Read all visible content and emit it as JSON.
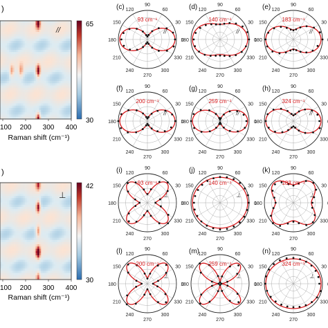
{
  "chart_data": {
    "type": "figure",
    "heatmaps": [
      {
        "id": "top",
        "panel_label": ")",
        "polarization_symbol": "//",
        "xlabel": "Raman shift (cm⁻¹)",
        "x_ticks": [
          "100",
          "200",
          "300",
          "400"
        ],
        "colorbar_max": "65",
        "colorbar_min": "30",
        "colormap": [
          "#2b6db0",
          "#7fb4d7",
          "#dcebf2",
          "#fbe3d3",
          "#f0a07f",
          "#b2182b",
          "#67001f"
        ],
        "hot_spots": [
          {
            "shift": 255,
            "angle_frac": 0.02,
            "value": 1.0
          },
          {
            "shift": 255,
            "angle_frac": 0.51,
            "value": 1.0
          },
          {
            "shift": 255,
            "angle_frac": 1.0,
            "value": 1.0
          },
          {
            "shift": 140,
            "angle_frac": 0.51,
            "value": 0.5
          },
          {
            "shift": 180,
            "angle_frac": 0.51,
            "value": 0.45
          }
        ]
      },
      {
        "id": "bottom",
        "panel_label": ")",
        "polarization_symbol": "⊥",
        "xlabel": "Raman shift (cm⁻¹)",
        "x_ticks": [
          "100",
          "200",
          "300",
          "400"
        ],
        "colorbar_max": "42",
        "colorbar_min": "30",
        "colormap": [
          "#2b6db0",
          "#7fb4d7",
          "#dcebf2",
          "#fbe3d3",
          "#f0a07f",
          "#b2182b",
          "#67001f"
        ],
        "hot_spots": [
          {
            "shift": 255,
            "angle_frac": 0.25,
            "value": 1.0
          },
          {
            "shift": 255,
            "angle_frac": 0.72,
            "value": 1.0
          },
          {
            "shift": 255,
            "angle_frac": 0.02,
            "value": 0.6
          },
          {
            "shift": 255,
            "angle_frac": 0.5,
            "value": 0.6
          },
          {
            "shift": 255,
            "angle_frac": 0.98,
            "value": 0.6
          }
        ]
      }
    ],
    "polar_grid": {
      "angle_labels": [
        "0",
        "30",
        "60",
        "90",
        "120",
        "150",
        "180",
        "210",
        "240",
        "270",
        "300",
        "330"
      ],
      "rings": 4
    },
    "polar_plots": [
      {
        "label": "(c)",
        "mode": "//",
        "peak": "93 cm⁻¹",
        "shape": "dumbbell",
        "a": 0.1,
        "b": 0.9
      },
      {
        "label": "(d)",
        "mode": "//",
        "peak": "140 cm⁻¹",
        "shape": "dumbbell",
        "a": 0.55,
        "b": 0.45
      },
      {
        "label": "(e)",
        "mode": "//",
        "peak": "183 cm⁻¹",
        "shape": "dumbbell",
        "a": 0.35,
        "b": 0.65
      },
      {
        "label": "(f)",
        "mode": "//",
        "peak": "200 cm⁻¹",
        "shape": "dumbbell",
        "a": 0.1,
        "b": 0.9
      },
      {
        "label": "(g)",
        "mode": "//",
        "peak": "259 cm⁻¹",
        "shape": "dumbbell",
        "a": 0.05,
        "b": 0.95
      },
      {
        "label": "(h)",
        "mode": "//",
        "peak": "324 cm⁻¹",
        "shape": "dumbbell",
        "a": 0.2,
        "b": 0.8
      },
      {
        "label": "(i)",
        "mode": "⊥",
        "peak": "93 cm⁻¹",
        "shape": "clover",
        "a": 0.3,
        "b": 0.7
      },
      {
        "label": "(j)",
        "mode": "⊥",
        "peak": "140 cm⁻¹",
        "shape": "round",
        "a": 0.92,
        "b": 0.08
      },
      {
        "label": "(k)",
        "mode": "⊥",
        "peak": "183 cm⁻¹",
        "shape": "clover",
        "a": 0.65,
        "b": 0.35
      },
      {
        "label": "(l)",
        "mode": "⊥",
        "peak": "200 cm⁻¹",
        "shape": "clover",
        "a": 0.2,
        "b": 0.8
      },
      {
        "label": "(m)",
        "mode": "⊥",
        "peak": "259 cm⁻¹",
        "shape": "clover",
        "a": 0.05,
        "b": 0.95
      },
      {
        "label": "(n)",
        "mode": "⊥",
        "peak": "324 cm⁻¹",
        "shape": "round",
        "a": 0.9,
        "b": 0.1
      }
    ],
    "colors": {
      "fit_line": "#d7191c",
      "data_points": "#111111",
      "peak_label": "#d7191c",
      "grid": "#9a9a9a"
    }
  }
}
